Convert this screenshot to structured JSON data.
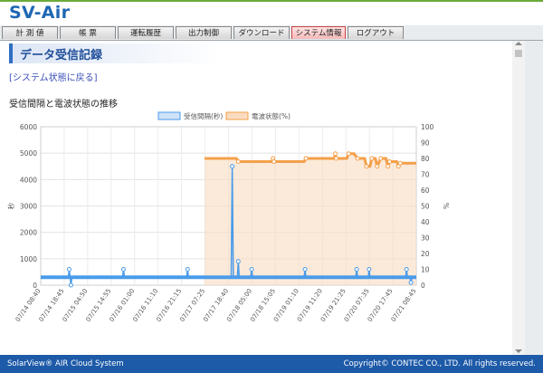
{
  "app": {
    "title": "SV-Air"
  },
  "nav": {
    "tabs": [
      {
        "label": "計 測 値",
        "active": false
      },
      {
        "label": "帳 票",
        "active": false
      },
      {
        "label": "運転履歴",
        "active": false
      },
      {
        "label": "出力制御",
        "active": false
      },
      {
        "label": "ダウンロード",
        "active": false
      },
      {
        "label": "システム情報",
        "active": true
      },
      {
        "label": "ログアウト",
        "active": false
      }
    ]
  },
  "page": {
    "title": "データ受信記録",
    "back_link": "[システム状態に戻る]",
    "chart_caption": "受信間隔と電波状態の推移"
  },
  "footer": {
    "left": "SolarView® AIR Cloud System",
    "right": "Copyright© CONTEC CO., LTD. All rights reserved."
  },
  "colors": {
    "interval_line": "#4a9bea",
    "signal_line": "#f4a04a",
    "signal_fill": "#f9dcc0",
    "interval_fill": "#cfe2f8"
  },
  "chart_data": {
    "type": "line",
    "legend_placement": "top-center",
    "series": [
      {
        "name": "受信間隔(秒)",
        "axis": "left",
        "points": [
          {
            "x": 0,
            "y": 300
          },
          {
            "x": 15.5,
            "y": 300
          },
          {
            "x": 16,
            "y": 600
          },
          {
            "x": 16.5,
            "y": 300
          },
          {
            "x": 17,
            "y": 0
          },
          {
            "x": 17.5,
            "y": 300
          },
          {
            "x": 46,
            "y": 300
          },
          {
            "x": 46.5,
            "y": 600
          },
          {
            "x": 47,
            "y": 300
          },
          {
            "x": 82,
            "y": 300
          },
          {
            "x": 82.5,
            "y": 600
          },
          {
            "x": 83,
            "y": 300
          },
          {
            "x": 107,
            "y": 300
          },
          {
            "x": 107.6,
            "y": 4500
          },
          {
            "x": 108.2,
            "y": 300
          },
          {
            "x": 110.5,
            "y": 300
          },
          {
            "x": 111,
            "y": 900
          },
          {
            "x": 111.5,
            "y": 300
          },
          {
            "x": 118,
            "y": 300
          },
          {
            "x": 118.5,
            "y": 600
          },
          {
            "x": 119,
            "y": 300
          },
          {
            "x": 148,
            "y": 300
          },
          {
            "x": 148.5,
            "y": 600
          },
          {
            "x": 149,
            "y": 300
          },
          {
            "x": 177,
            "y": 300
          },
          {
            "x": 177.5,
            "y": 600
          },
          {
            "x": 178,
            "y": 300
          },
          {
            "x": 184,
            "y": 300
          },
          {
            "x": 184.5,
            "y": 600
          },
          {
            "x": 185,
            "y": 300
          },
          {
            "x": 205,
            "y": 300
          },
          {
            "x": 205.5,
            "y": 600
          },
          {
            "x": 206,
            "y": 300
          },
          {
            "x": 207.5,
            "y": 300
          },
          {
            "x": 208,
            "y": 100
          },
          {
            "x": 208.5,
            "y": 300
          },
          {
            "x": 211,
            "y": 300
          }
        ]
      },
      {
        "name": "電波状態(%)",
        "axis": "right",
        "points": [
          {
            "x": 92,
            "y": 80
          },
          {
            "x": 110,
            "y": 80
          },
          {
            "x": 111,
            "y": 78
          },
          {
            "x": 130,
            "y": 78
          },
          {
            "x": 130.5,
            "y": 80
          },
          {
            "x": 131,
            "y": 78
          },
          {
            "x": 148,
            "y": 78
          },
          {
            "x": 149,
            "y": 80
          },
          {
            "x": 165,
            "y": 80
          },
          {
            "x": 165.5,
            "y": 83
          },
          {
            "x": 166,
            "y": 80
          },
          {
            "x": 172,
            "y": 80
          },
          {
            "x": 173,
            "y": 83
          },
          {
            "x": 176,
            "y": 83
          },
          {
            "x": 178,
            "y": 80
          },
          {
            "x": 182,
            "y": 80
          },
          {
            "x": 183,
            "y": 75
          },
          {
            "x": 185,
            "y": 75
          },
          {
            "x": 186,
            "y": 80
          },
          {
            "x": 188,
            "y": 80
          },
          {
            "x": 189,
            "y": 75
          },
          {
            "x": 191,
            "y": 80
          },
          {
            "x": 194,
            "y": 80
          },
          {
            "x": 195,
            "y": 75
          },
          {
            "x": 196,
            "y": 78
          },
          {
            "x": 200,
            "y": 78
          },
          {
            "x": 201,
            "y": 75
          },
          {
            "x": 202,
            "y": 77
          },
          {
            "x": 211,
            "y": 77
          }
        ]
      }
    ],
    "x_tick_labels": [
      "07/14 08:40",
      "07/14 18:45",
      "07/15 04:50",
      "07/15 14:55",
      "07/16 01:00",
      "07/16 11:10",
      "07/16 21:15",
      "07/17 07:25",
      "07/17 18:40",
      "07/18 05:00",
      "07/18 15:05",
      "07/19 01:10",
      "07/19 11:20",
      "07/19 21:25",
      "07/20 07:35",
      "07/20 17:45",
      "07/21 08:45"
    ],
    "x_range": [
      0,
      211
    ],
    "left_axis": {
      "label": "秒",
      "range": [
        0,
        6000
      ],
      "ticks": [
        "0",
        "1000",
        "2000",
        "3000",
        "4000",
        "5000",
        "6000"
      ]
    },
    "right_axis": {
      "label": "%",
      "range": [
        0,
        100
      ],
      "ticks": [
        "0",
        "10",
        "20",
        "30",
        "40",
        "50",
        "60",
        "70",
        "80",
        "90",
        "100"
      ]
    },
    "grid": true
  }
}
